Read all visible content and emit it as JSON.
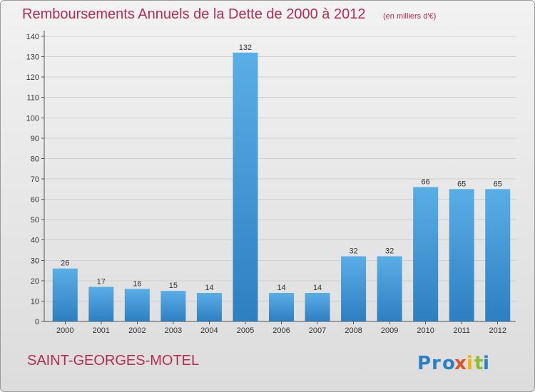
{
  "header": {
    "title": "Remboursements Annuels de la Dette de 2000 à 2012",
    "unit": "(en milliers d'€)"
  },
  "footer": {
    "commune": "SAINT-GEORGES-MOTEL",
    "logo_text": "Proxiti",
    "logo_letters": [
      "P",
      "r",
      "o",
      "x",
      "i",
      "t",
      "i"
    ],
    "logo_colors": [
      "#2a7fc7",
      "#2a7fc7",
      "#2a7fc7",
      "#e0512a",
      "#f3b400",
      "#8bbd2c",
      "#2a7fc7"
    ]
  },
  "colors": {
    "title": "#b22d55",
    "bar_top": "#5aaee6",
    "bar_bottom": "#2d7fc0",
    "axis_text": "#333333",
    "grid": "#cfcfcf"
  },
  "chart_data": {
    "type": "bar",
    "title": "Remboursements Annuels de la Dette de 2000 à 2012",
    "subtitle": "(en milliers d'€)",
    "categories": [
      "2000",
      "2001",
      "2002",
      "2003",
      "2004",
      "2005",
      "2006",
      "2007",
      "2008",
      "2009",
      "2010",
      "2011",
      "2012"
    ],
    "values": [
      26,
      17,
      16,
      15,
      14,
      132,
      14,
      14,
      32,
      32,
      66,
      65,
      65
    ],
    "ylim": [
      0,
      140
    ],
    "yticks": [
      0,
      10,
      20,
      30,
      40,
      50,
      60,
      70,
      80,
      90,
      100,
      110,
      120,
      130,
      140
    ],
    "grid": true,
    "data_labels": true
  }
}
